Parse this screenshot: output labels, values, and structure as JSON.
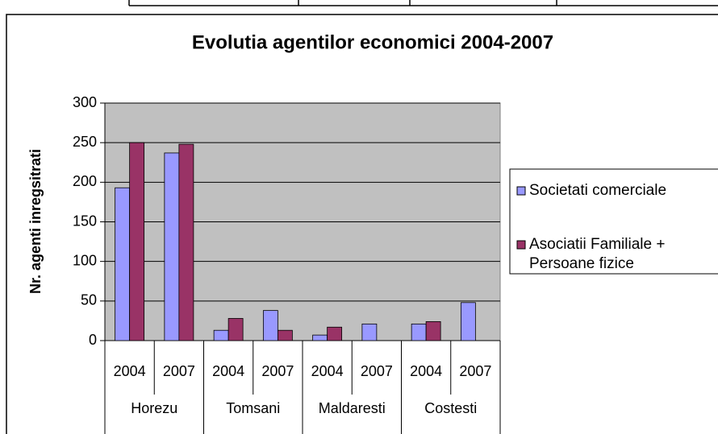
{
  "chart_data": {
    "type": "bar",
    "title": "Evolutia agentilor economici 2004-2007",
    "y_label": "Nr. agenti inregsitrati",
    "categories": [
      "2004",
      "2007",
      "2004",
      "2007",
      "2004",
      "2007",
      "2004",
      "2007"
    ],
    "groups": [
      "Horezu",
      "Tomsani",
      "Maldaresti",
      "Costesti"
    ],
    "series": [
      {
        "name": "Societati comerciale",
        "color": "#9999ff",
        "values": [
          193,
          237,
          13,
          38,
          7,
          21,
          21,
          48
        ]
      },
      {
        "name": "Asociatii Familiale + Persoane fizice",
        "color": "#993366",
        "values": [
          250,
          248,
          28,
          13,
          17,
          null,
          24,
          null
        ]
      }
    ],
    "ylim": [
      0,
      300
    ],
    "yticks": [
      0,
      50,
      100,
      150,
      200,
      250,
      300
    ],
    "grid": true,
    "legend_position": "right"
  }
}
